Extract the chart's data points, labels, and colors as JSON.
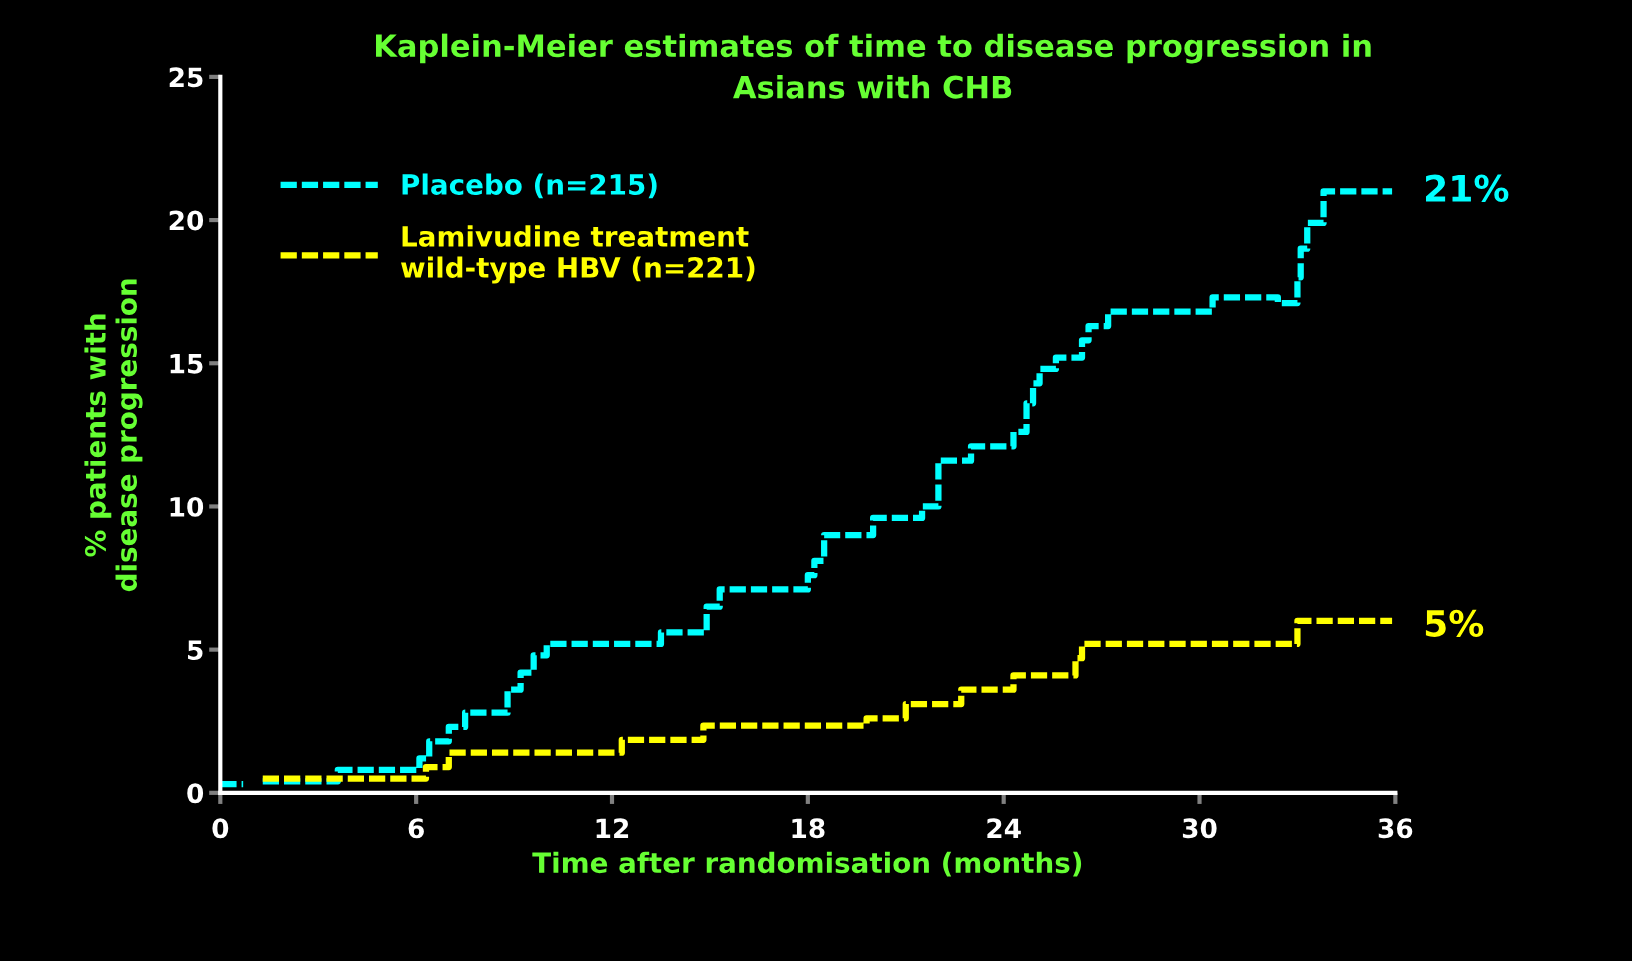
{
  "chart_data": {
    "type": "step",
    "title": "Kaplein-Meier estimates of time to disease progression in\nAsians with CHB",
    "xlabel": "Time after randomisation (months)",
    "ylabel": "% patients with\ndisease progression",
    "xlim": [
      0,
      36
    ],
    "xticks": [
      0,
      6,
      12,
      18,
      24,
      30,
      36
    ],
    "ylim": [
      0,
      25
    ],
    "yticks": [
      0,
      5,
      10,
      15,
      20,
      25
    ],
    "grid": false,
    "legend": "top left",
    "line_style": "dashed",
    "marker": "none",
    "series": [
      {
        "name": "Placebo (n=215)",
        "color": "#00ffff",
        "x": [
          0,
          0.7,
          1.3,
          3.6,
          6.1,
          6.4,
          7.0,
          7.5,
          8.8,
          9.2,
          9.6,
          10.0,
          13.5,
          14.9,
          15.3,
          18.0,
          18.2,
          18.5,
          20.0,
          21.5,
          22.0,
          23.0,
          24.3,
          24.7,
          24.9,
          25.1,
          25.6,
          26.4,
          26.6,
          27.2,
          30.4,
          32.4,
          33.0,
          33.1,
          33.3,
          33.8,
          35.9
        ],
        "values": [
          0.3,
          null,
          0.4,
          0.8,
          1.2,
          1.8,
          2.3,
          2.8,
          3.6,
          4.2,
          4.8,
          5.2,
          5.6,
          6.5,
          7.1,
          7.6,
          8.1,
          9.0,
          9.6,
          10.0,
          11.6,
          12.1,
          12.6,
          13.6,
          14.3,
          14.8,
          15.2,
          15.8,
          16.3,
          16.8,
          17.3,
          17.1,
          18.0,
          19.0,
          19.9,
          21.0,
          21.0
        ]
      },
      {
        "name": "Lamivudine treatment\nwild-type HBV (n=221)",
        "color": "#ffff00",
        "x": [
          1.3,
          6.3,
          7.0,
          12.3,
          14.8,
          19.8,
          21.0,
          22.7,
          24.3,
          26.2,
          26.4,
          33.0,
          35.9
        ],
        "values": [
          0.5,
          0.9,
          1.4,
          1.85,
          2.35,
          2.6,
          3.1,
          3.6,
          4.1,
          4.7,
          5.2,
          6.0,
          6.0
        ]
      }
    ],
    "annotations": [
      {
        "text": "21%",
        "x": 36,
        "y": 21
      },
      {
        "text": "5%",
        "x": 36,
        "y": 6
      }
    ]
  }
}
